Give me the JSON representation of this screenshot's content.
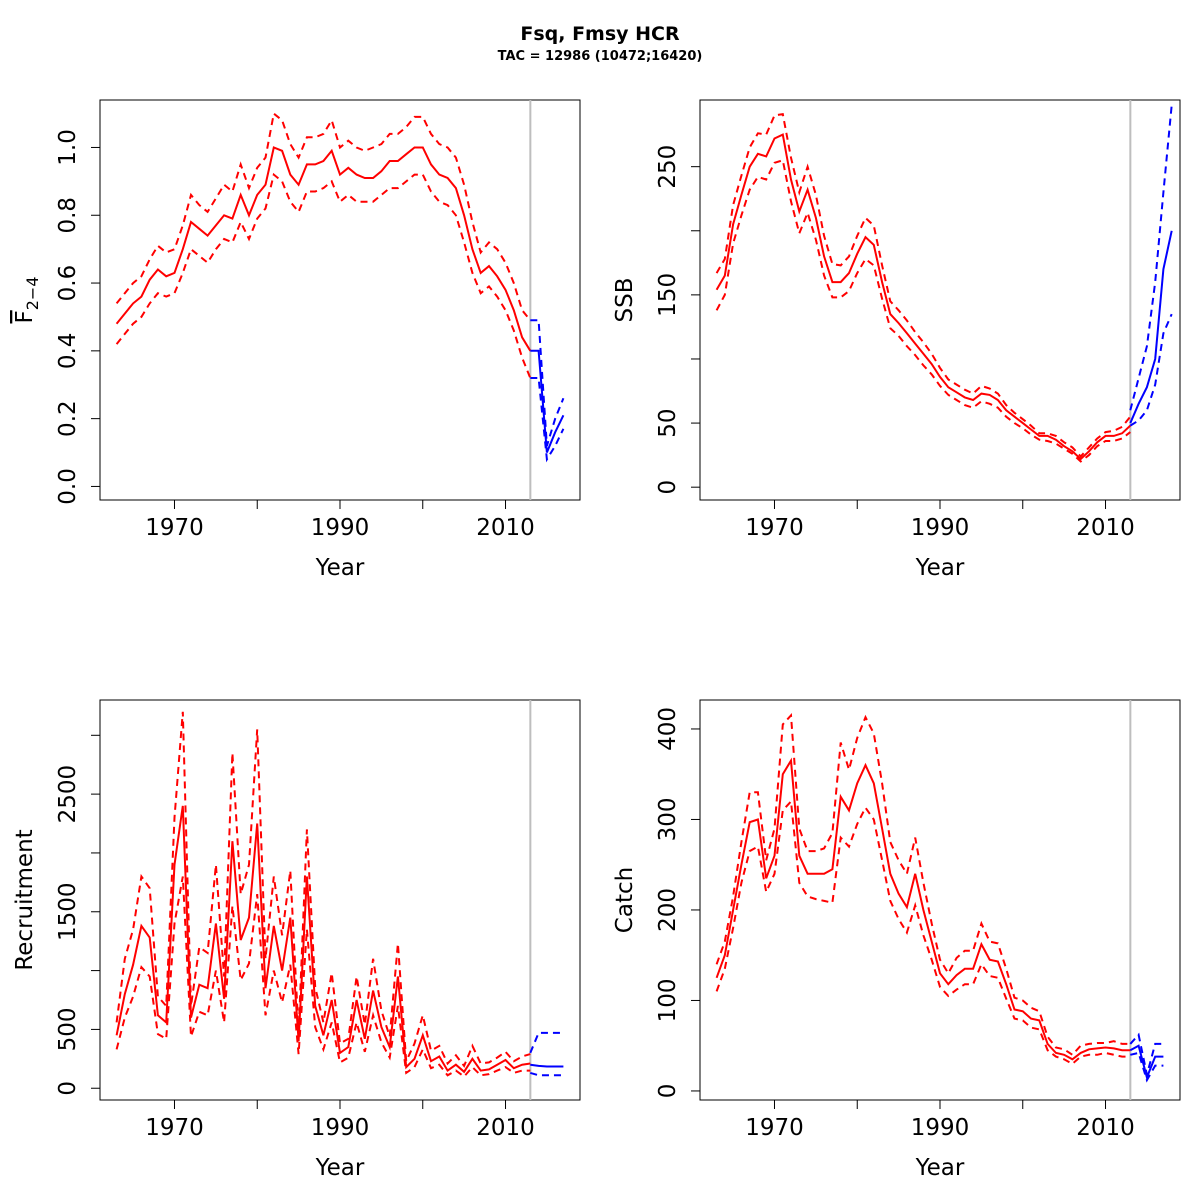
{
  "title": "Fsq, Fmsy HCR",
  "subtitle": "TAC = 12986 (10472;16420)",
  "colors": {
    "estimate": "#ff0000",
    "projection": "#0000ff",
    "divider": "#bebebe",
    "axis": "#000000"
  },
  "chart_data": [
    {
      "id": "fbar",
      "type": "line",
      "xlabel": "Year",
      "ylabel_main": "F",
      "ylabel_sub": "2−4",
      "xlim": [
        1961,
        2019
      ],
      "ylim": [
        -0.04,
        1.14
      ],
      "xticks": [
        1970,
        1980,
        1990,
        2000,
        2010
      ],
      "xtick_labels": [
        "1970",
        "",
        "1990",
        "",
        "2010"
      ],
      "yticks": [
        0,
        0.2,
        0.4,
        0.6,
        0.8,
        1.0
      ],
      "ytick_labels": [
        "0.0",
        "0.2",
        "0.4",
        "0.6",
        "0.8",
        "1.0"
      ],
      "divider_year": 2013,
      "historic": {
        "x": [
          1963,
          1964,
          1965,
          1966,
          1967,
          1968,
          1969,
          1970,
          1971,
          1972,
          1973,
          1974,
          1975,
          1976,
          1977,
          1978,
          1979,
          1980,
          1981,
          1982,
          1983,
          1984,
          1985,
          1986,
          1987,
          1988,
          1989,
          1990,
          1991,
          1992,
          1993,
          1994,
          1995,
          1996,
          1997,
          1998,
          1999,
          2000,
          2001,
          2002,
          2003,
          2004,
          2005,
          2006,
          2007,
          2008,
          2009,
          2010,
          2011,
          2012,
          2013
        ],
        "mid": [
          0.48,
          0.51,
          0.54,
          0.56,
          0.61,
          0.64,
          0.62,
          0.63,
          0.7,
          0.78,
          0.76,
          0.74,
          0.77,
          0.8,
          0.79,
          0.86,
          0.8,
          0.86,
          0.89,
          1.0,
          0.99,
          0.92,
          0.89,
          0.95,
          0.95,
          0.96,
          0.99,
          0.92,
          0.94,
          0.92,
          0.91,
          0.91,
          0.93,
          0.96,
          0.96,
          0.98,
          1.0,
          1.0,
          0.95,
          0.92,
          0.91,
          0.88,
          0.8,
          0.7,
          0.63,
          0.65,
          0.62,
          0.58,
          0.52,
          0.44,
          0.4
        ],
        "upper": [
          0.54,
          0.57,
          0.6,
          0.62,
          0.67,
          0.71,
          0.69,
          0.7,
          0.77,
          0.86,
          0.83,
          0.81,
          0.85,
          0.89,
          0.87,
          0.95,
          0.88,
          0.94,
          0.97,
          1.1,
          1.08,
          1.01,
          0.97,
          1.03,
          1.03,
          1.04,
          1.08,
          1.0,
          1.02,
          1.0,
          0.99,
          1.0,
          1.01,
          1.04,
          1.04,
          1.06,
          1.09,
          1.09,
          1.04,
          1.01,
          1.0,
          0.97,
          0.89,
          0.78,
          0.69,
          0.72,
          0.7,
          0.66,
          0.6,
          0.52,
          0.49
        ],
        "lower": [
          0.42,
          0.45,
          0.48,
          0.5,
          0.54,
          0.57,
          0.56,
          0.57,
          0.63,
          0.7,
          0.68,
          0.66,
          0.7,
          0.73,
          0.72,
          0.78,
          0.73,
          0.79,
          0.82,
          0.92,
          0.9,
          0.84,
          0.81,
          0.87,
          0.87,
          0.88,
          0.9,
          0.84,
          0.86,
          0.84,
          0.84,
          0.84,
          0.86,
          0.88,
          0.88,
          0.9,
          0.92,
          0.92,
          0.87,
          0.84,
          0.83,
          0.8,
          0.72,
          0.63,
          0.57,
          0.59,
          0.56,
          0.52,
          0.46,
          0.38,
          0.32
        ]
      },
      "projection": {
        "x": [
          2013,
          2014,
          2015,
          2016,
          2017
        ],
        "mid": [
          0.4,
          0.4,
          0.1,
          0.16,
          0.21
        ],
        "upper": [
          0.49,
          0.49,
          0.12,
          0.2,
          0.26
        ],
        "lower": [
          0.32,
          0.32,
          0.08,
          0.12,
          0.17
        ]
      }
    },
    {
      "id": "ssb",
      "type": "line",
      "xlabel": "Year",
      "ylabel": "SSB",
      "xlim": [
        1961,
        2019
      ],
      "ylim": [
        -10,
        302
      ],
      "xticks": [
        1970,
        1980,
        1990,
        2000,
        2010
      ],
      "xtick_labels": [
        "1970",
        "",
        "1990",
        "",
        "2010"
      ],
      "yticks": [
        0,
        50,
        100,
        150,
        200,
        250
      ],
      "ytick_labels": [
        "0",
        "50",
        "",
        "150",
        "",
        "250"
      ],
      "divider_year": 2013,
      "historic": {
        "x": [
          1963,
          1964,
          1965,
          1966,
          1967,
          1968,
          1969,
          1970,
          1971,
          1972,
          1973,
          1974,
          1975,
          1976,
          1977,
          1978,
          1979,
          1980,
          1981,
          1982,
          1983,
          1984,
          1985,
          1986,
          1987,
          1988,
          1989,
          1990,
          1991,
          1992,
          1993,
          1994,
          1995,
          1996,
          1997,
          1998,
          1999,
          2000,
          2001,
          2002,
          2003,
          2004,
          2005,
          2006,
          2007,
          2008,
          2009,
          2010,
          2011,
          2012,
          2013
        ],
        "mid": [
          154,
          165,
          205,
          228,
          250,
          260,
          258,
          272,
          275,
          240,
          215,
          232,
          210,
          180,
          160,
          160,
          167,
          182,
          195,
          189,
          160,
          135,
          128,
          120,
          112,
          104,
          96,
          86,
          78,
          74,
          70,
          68,
          73,
          72,
          68,
          60,
          55,
          50,
          45,
          40,
          40,
          37,
          32,
          28,
          22,
          28,
          35,
          40,
          40,
          42,
          48
        ],
        "upper": [
          167,
          178,
          220,
          243,
          265,
          276,
          275,
          290,
          291,
          257,
          230,
          250,
          228,
          196,
          174,
          173,
          180,
          196,
          210,
          204,
          173,
          145,
          138,
          130,
          121,
          113,
          104,
          93,
          84,
          80,
          76,
          73,
          79,
          77,
          73,
          64,
          58,
          53,
          48,
          42,
          42,
          40,
          35,
          31,
          24,
          31,
          38,
          43,
          44,
          47,
          55
        ],
        "lower": [
          138,
          150,
          190,
          212,
          232,
          242,
          240,
          253,
          255,
          223,
          198,
          214,
          193,
          165,
          148,
          148,
          153,
          167,
          178,
          173,
          147,
          124,
          118,
          110,
          103,
          95,
          88,
          79,
          72,
          68,
          64,
          62,
          67,
          65,
          62,
          55,
          50,
          46,
          41,
          37,
          36,
          34,
          30,
          26,
          20,
          25,
          32,
          36,
          36,
          38,
          43
        ]
      },
      "projection": {
        "x": [
          2013,
          2014,
          2015,
          2016,
          2017,
          2018
        ],
        "mid": [
          50,
          65,
          78,
          100,
          170,
          200
        ],
        "upper": [
          60,
          85,
          110,
          160,
          230,
          298
        ],
        "lower": [
          48,
          52,
          60,
          80,
          120,
          135
        ]
      }
    },
    {
      "id": "recruitment",
      "type": "line",
      "xlabel": "Year",
      "ylabel": "Recruitment",
      "xlim": [
        1961,
        2019
      ],
      "ylim": [
        -100,
        3300
      ],
      "xticks": [
        1970,
        1980,
        1990,
        2000,
        2010
      ],
      "xtick_labels": [
        "1970",
        "",
        "1990",
        "",
        "2010"
      ],
      "yticks": [
        0,
        500,
        1000,
        1500,
        2000,
        2500,
        3000
      ],
      "ytick_labels": [
        "0",
        "500",
        "",
        "1500",
        "",
        "2500",
        ""
      ],
      "divider_year": 2013,
      "historic": {
        "x": [
          1963,
          1964,
          1965,
          1966,
          1967,
          1968,
          1969,
          1970,
          1971,
          1972,
          1973,
          1974,
          1975,
          1976,
          1977,
          1978,
          1979,
          1980,
          1981,
          1982,
          1983,
          1984,
          1985,
          1986,
          1987,
          1988,
          1989,
          1990,
          1991,
          1992,
          1993,
          1994,
          1995,
          1996,
          1997,
          1998,
          1999,
          2000,
          2001,
          2002,
          2003,
          2004,
          2005,
          2006,
          2007,
          2008,
          2009,
          2010,
          2011,
          2012,
          2013
        ],
        "mid": [
          450,
          800,
          1050,
          1380,
          1280,
          620,
          560,
          1900,
          2400,
          600,
          880,
          850,
          1400,
          760,
          2100,
          1260,
          1450,
          2250,
          850,
          1380,
          1000,
          1450,
          400,
          1800,
          700,
          450,
          750,
          300,
          350,
          750,
          420,
          830,
          520,
          350,
          950,
          180,
          250,
          450,
          230,
          270,
          150,
          200,
          140,
          250,
          150,
          160,
          200,
          240,
          170,
          200,
          210
        ],
        "upper": [
          560,
          1100,
          1350,
          1800,
          1700,
          780,
          700,
          2300,
          3200,
          700,
          1200,
          1150,
          1900,
          950,
          2850,
          1650,
          1900,
          3050,
          1100,
          1800,
          1300,
          1850,
          470,
          2200,
          860,
          560,
          980,
          380,
          420,
          950,
          540,
          1100,
          660,
          440,
          1230,
          230,
          380,
          620,
          320,
          360,
          210,
          280,
          190,
          360,
          210,
          220,
          260,
          310,
          230,
          270,
          290
        ],
        "lower": [
          330,
          600,
          780,
          1030,
          950,
          460,
          420,
          1400,
          1800,
          440,
          650,
          620,
          1000,
          560,
          1550,
          920,
          1060,
          1650,
          620,
          1000,
          730,
          1050,
          290,
          1350,
          520,
          330,
          560,
          220,
          260,
          560,
          310,
          620,
          390,
          260,
          700,
          130,
          180,
          330,
          170,
          200,
          110,
          150,
          100,
          180,
          110,
          120,
          150,
          180,
          130,
          150,
          150
        ]
      },
      "projection": {
        "x": [
          2013,
          2014,
          2015,
          2016,
          2017
        ],
        "mid": [
          200,
          190,
          185,
          185,
          185
        ],
        "upper": [
          300,
          470,
          470,
          470,
          470
        ],
        "lower": [
          130,
          110,
          110,
          110,
          110
        ]
      }
    },
    {
      "id": "catch",
      "type": "line",
      "xlabel": "Year",
      "ylabel": "Catch",
      "xlim": [
        1961,
        2019
      ],
      "ylim": [
        -10,
        432
      ],
      "xticks": [
        1970,
        1980,
        1990,
        2000,
        2010
      ],
      "xtick_labels": [
        "1970",
        "",
        "1990",
        "",
        "2010"
      ],
      "yticks": [
        0,
        100,
        200,
        300,
        400
      ],
      "ytick_labels": [
        "0",
        "100",
        "200",
        "300",
        "400"
      ],
      "divider_year": 2013,
      "historic": {
        "x": [
          1963,
          1964,
          1965,
          1966,
          1967,
          1968,
          1969,
          1970,
          1971,
          1972,
          1973,
          1974,
          1975,
          1976,
          1977,
          1978,
          1979,
          1980,
          1981,
          1982,
          1983,
          1984,
          1985,
          1986,
          1987,
          1988,
          1989,
          1990,
          1991,
          1992,
          1993,
          1994,
          1995,
          1996,
          1997,
          1998,
          1999,
          2000,
          2001,
          2002,
          2003,
          2004,
          2005,
          2006,
          2007,
          2008,
          2009,
          2010,
          2011,
          2012,
          2013
        ],
        "mid": [
          125,
          150,
          200,
          250,
          297,
          300,
          235,
          260,
          350,
          365,
          260,
          240,
          240,
          240,
          245,
          325,
          310,
          340,
          360,
          340,
          290,
          240,
          218,
          203,
          240,
          200,
          165,
          130,
          118,
          128,
          135,
          135,
          162,
          145,
          143,
          118,
          90,
          88,
          80,
          78,
          52,
          42,
          40,
          35,
          42,
          46,
          47,
          48,
          47,
          45,
          45
        ],
        "upper": [
          140,
          165,
          215,
          275,
          330,
          330,
          255,
          290,
          405,
          415,
          290,
          265,
          265,
          268,
          285,
          385,
          355,
          390,
          413,
          395,
          340,
          275,
          255,
          240,
          280,
          230,
          185,
          145,
          130,
          147,
          155,
          155,
          185,
          165,
          163,
          135,
          103,
          100,
          92,
          88,
          60,
          48,
          46,
          40,
          50,
          52,
          53,
          53,
          55,
          52,
          52
        ],
        "lower": [
          110,
          135,
          180,
          230,
          265,
          270,
          220,
          240,
          310,
          320,
          230,
          215,
          212,
          210,
          208,
          280,
          270,
          295,
          313,
          300,
          255,
          210,
          190,
          175,
          205,
          172,
          145,
          115,
          105,
          112,
          118,
          118,
          140,
          127,
          125,
          102,
          80,
          78,
          70,
          68,
          45,
          38,
          35,
          30,
          38,
          40,
          40,
          42,
          40,
          38,
          38
        ]
      },
      "projection": {
        "x": [
          2013,
          2014,
          2015,
          2016,
          2017
        ],
        "mid": [
          45,
          50,
          15,
          38,
          38
        ],
        "upper": [
          52,
          62,
          18,
          52,
          52
        ],
        "lower": [
          40,
          42,
          12,
          28,
          28
        ]
      }
    }
  ]
}
